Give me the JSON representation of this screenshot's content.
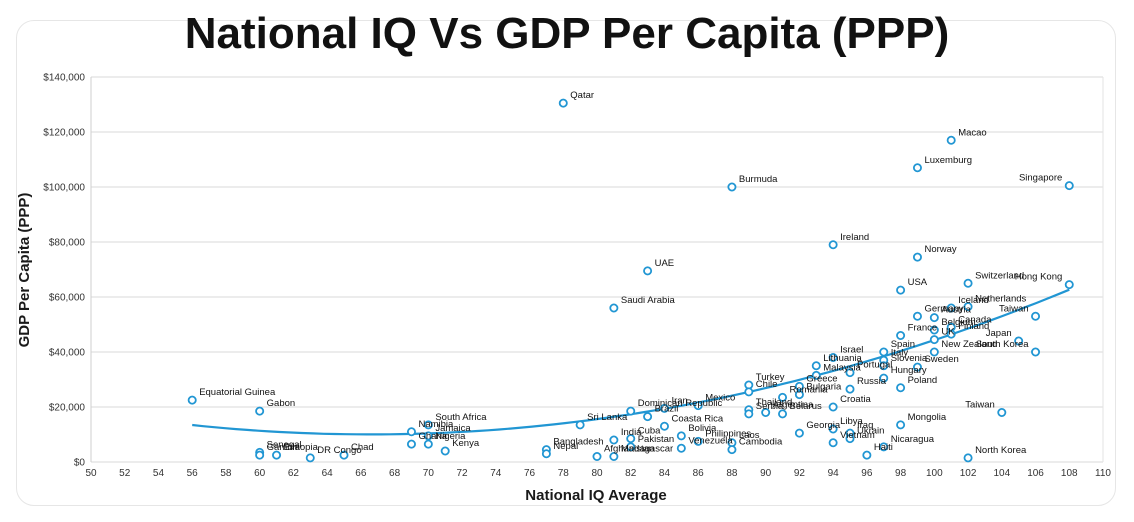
{
  "chart_data": {
    "type": "scatter",
    "title": "National IQ Vs GDP Per Capita (PPP)",
    "xlabel": "National IQ Average",
    "ylabel": "GDP Per Capita (PPP)",
    "xlim": [
      50,
      110
    ],
    "ylim": [
      0,
      140000
    ],
    "x_ticks": [
      "50",
      "52",
      "54",
      "56",
      "58",
      "60",
      "62",
      "64",
      "66",
      "68",
      "70",
      "72",
      "74",
      "76",
      "78",
      "80",
      "82",
      "84",
      "86",
      "88",
      "90",
      "92",
      "94",
      "96",
      "98",
      "100",
      "102",
      "104",
      "106",
      "108",
      "110"
    ],
    "y_ticks": [
      "$0",
      "$20,000",
      "$40,000",
      "$60,000",
      "$80,000",
      "$100,000",
      "$120,000",
      "$140,000"
    ],
    "grid": true,
    "trendline": "polynomial",
    "colors": {
      "marker": "#2196d3",
      "trend": "#2196d3",
      "grid": "#d9d9d9"
    },
    "points": [
      {
        "label": "Qatar",
        "x": 78,
        "y": 130500
      },
      {
        "label": "Macao",
        "x": 101,
        "y": 117000
      },
      {
        "label": "Luxemburg",
        "x": 99,
        "y": 107000
      },
      {
        "label": "Singapore",
        "x": 108,
        "y": 100500
      },
      {
        "label": "Burmuda",
        "x": 88,
        "y": 100000
      },
      {
        "label": "Ireland",
        "x": 94,
        "y": 79000
      },
      {
        "label": "Norway",
        "x": 99,
        "y": 74500
      },
      {
        "label": "UAE",
        "x": 83,
        "y": 69500
      },
      {
        "label": "Switzerland",
        "x": 102,
        "y": 65000
      },
      {
        "label": "Hong Kong",
        "x": 108,
        "y": 64500
      },
      {
        "label": "USA",
        "x": 98,
        "y": 62500
      },
      {
        "label": "Saudi Arabia",
        "x": 81,
        "y": 56000
      },
      {
        "label": "Iceland",
        "x": 101,
        "y": 56000
      },
      {
        "label": "Netherlands",
        "x": 102,
        "y": 56500
      },
      {
        "label": "Germany",
        "x": 99,
        "y": 53000
      },
      {
        "label": "Austria",
        "x": 100,
        "y": 52500
      },
      {
        "label": "Taiwan",
        "x": 106,
        "y": 53000
      },
      {
        "label": "Canada",
        "x": 101,
        "y": 49000
      },
      {
        "label": "Belgium",
        "x": 100,
        "y": 48000
      },
      {
        "label": "Finland",
        "x": 101,
        "y": 46500
      },
      {
        "label": "France",
        "x": 98,
        "y": 46000
      },
      {
        "label": "Japan",
        "x": 105,
        "y": 44000
      },
      {
        "label": "UK",
        "x": 100,
        "y": 44500
      },
      {
        "label": "Israel",
        "x": 94,
        "y": 38000
      },
      {
        "label": "Spain",
        "x": 97,
        "y": 40000
      },
      {
        "label": "New Zealand",
        "x": 100,
        "y": 40000
      },
      {
        "label": "South Korea",
        "x": 106,
        "y": 40000
      },
      {
        "label": "Lithuania",
        "x": 93,
        "y": 35000
      },
      {
        "label": "Italy",
        "x": 97,
        "y": 37000
      },
      {
        "label": "Slovenia",
        "x": 97,
        "y": 35000
      },
      {
        "label": "Malaysia",
        "x": 93,
        "y": 31500
      },
      {
        "label": "Sweden",
        "x": 99,
        "y": 34500
      },
      {
        "label": "Portugal",
        "x": 95,
        "y": 32500
      },
      {
        "label": "Hungary",
        "x": 97,
        "y": 30500
      },
      {
        "label": "Turkey",
        "x": 89,
        "y": 28000
      },
      {
        "label": "Greece",
        "x": 92,
        "y": 27500
      },
      {
        "label": "Russia",
        "x": 95,
        "y": 26500
      },
      {
        "label": "Poland",
        "x": 98,
        "y": 27000
      },
      {
        "label": "Chile",
        "x": 89,
        "y": 25500
      },
      {
        "label": "Romania",
        "x": 91,
        "y": 23500
      },
      {
        "label": "Bulgaria",
        "x": 92,
        "y": 24500
      },
      {
        "label": "Equatorial Guinea",
        "x": 56,
        "y": 22500
      },
      {
        "label": "Dominican Republic",
        "x": 82,
        "y": 18500
      },
      {
        "label": "Iran",
        "x": 84,
        "y": 19500
      },
      {
        "label": "Mexico",
        "x": 86,
        "y": 20500
      },
      {
        "label": "Thailand",
        "x": 89,
        "y": 19000
      },
      {
        "label": "Croatia",
        "x": 94,
        "y": 20000
      },
      {
        "label": "Gabon",
        "x": 60,
        "y": 18500
      },
      {
        "label": "Brazil",
        "x": 83,
        "y": 16500
      },
      {
        "label": "Serbia",
        "x": 89,
        "y": 17500
      },
      {
        "label": "Argentina",
        "x": 90,
        "y": 18000
      },
      {
        "label": "Belarus",
        "x": 91,
        "y": 17500
      },
      {
        "label": "Taiwan",
        "x": 104,
        "y": 18000
      },
      {
        "label": "Sri Lanka",
        "x": 79,
        "y": 13500
      },
      {
        "label": "South Africa",
        "x": 70,
        "y": 13500
      },
      {
        "label": "Coasta Rica",
        "x": 84,
        "y": 13000
      },
      {
        "label": "Mongolia",
        "x": 98,
        "y": 13500
      },
      {
        "label": "Namibia",
        "x": 69,
        "y": 11000
      },
      {
        "label": "Jamaica",
        "x": 70,
        "y": 9500
      },
      {
        "label": "Libya",
        "x": 94,
        "y": 12000
      },
      {
        "label": "Iraq",
        "x": 95,
        "y": 10500
      },
      {
        "label": "Bolivia",
        "x": 85,
        "y": 9500
      },
      {
        "label": "Georgia",
        "x": 92,
        "y": 10500
      },
      {
        "label": "India",
        "x": 81,
        "y": 8000
      },
      {
        "label": "Cuba",
        "x": 82,
        "y": 8500
      },
      {
        "label": "Philippines",
        "x": 86,
        "y": 7500
      },
      {
        "label": "Laos",
        "x": 88,
        "y": 7000
      },
      {
        "label": "Ghana",
        "x": 69,
        "y": 6500
      },
      {
        "label": "Nigeria",
        "x": 70,
        "y": 6500
      },
      {
        "label": "Pakistan",
        "x": 82,
        "y": 5500
      },
      {
        "label": "Venezuela",
        "x": 85,
        "y": 5000
      },
      {
        "label": "Vietnam",
        "x": 94,
        "y": 7000
      },
      {
        "label": "Nicaragua",
        "x": 97,
        "y": 5500
      },
      {
        "label": "Kenya",
        "x": 71,
        "y": 4000
      },
      {
        "label": "Bangladesh",
        "x": 77,
        "y": 4500
      },
      {
        "label": "Madagascar",
        "x": 81,
        "y": 2000
      },
      {
        "label": "Cambodia",
        "x": 88,
        "y": 4500
      },
      {
        "label": "Ukrain",
        "x": 95,
        "y": 8500
      },
      {
        "label": "Haiti",
        "x": 96,
        "y": 2500
      },
      {
        "label": "Senegal",
        "x": 60,
        "y": 3500
      },
      {
        "label": "Ethiopia",
        "x": 61,
        "y": 2500
      },
      {
        "label": "DR Congo",
        "x": 63,
        "y": 1500
      },
      {
        "label": "Chad",
        "x": 65,
        "y": 2500
      },
      {
        "label": "Gambia",
        "x": 60,
        "y": 2500
      },
      {
        "label": "Nepal",
        "x": 77,
        "y": 3000
      },
      {
        "label": "Afghanistan",
        "x": 80,
        "y": 2000
      },
      {
        "label": "North Korea",
        "x": 102,
        "y": 1500
      }
    ]
  }
}
